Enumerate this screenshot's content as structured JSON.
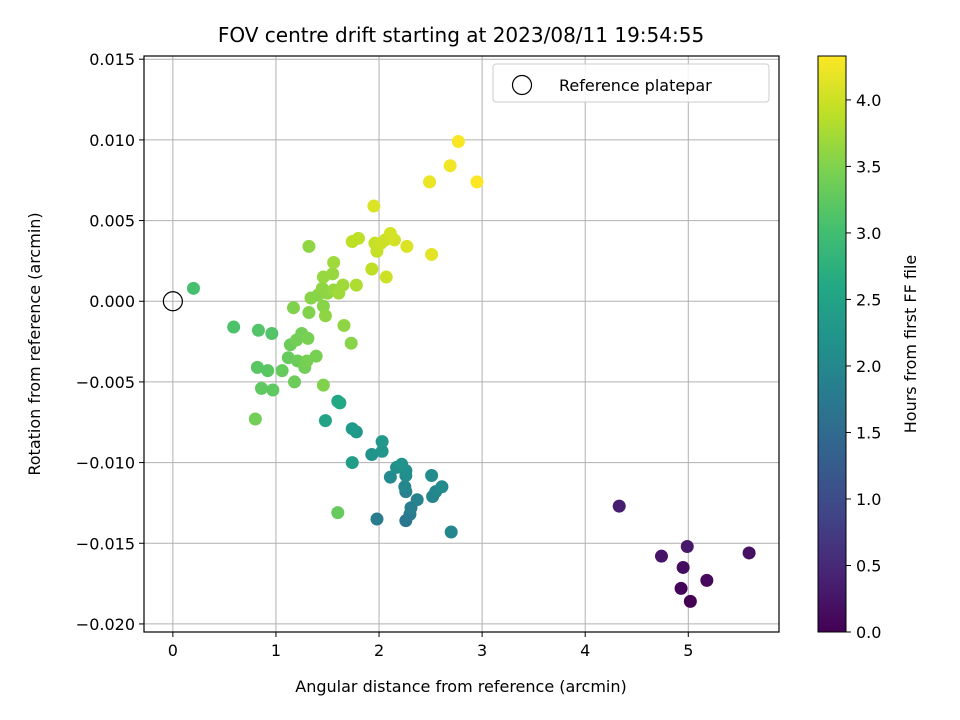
{
  "chart_data": {
    "type": "scatter",
    "title": "FOV centre drift starting at 2023/08/11 19:54:55",
    "xlabel": "Angular distance from reference (arcmin)",
    "ylabel": "Rotation from reference (arcmin)",
    "xlim": [
      -0.28,
      5.88
    ],
    "ylim": [
      -0.0205,
      0.0152
    ],
    "xticks": [
      0,
      1,
      2,
      3,
      4,
      5
    ],
    "xtick_labels": [
      "0",
      "1",
      "2",
      "3",
      "4",
      "5"
    ],
    "yticks": [
      -0.02,
      -0.015,
      -0.01,
      -0.005,
      0.0,
      0.005,
      0.01,
      0.015
    ],
    "ytick_labels": [
      "−0.020",
      "−0.015",
      "−0.010",
      "−0.005",
      "0.000",
      "0.005",
      "0.010",
      "0.015"
    ],
    "grid": true,
    "colormap": "viridis",
    "colorbar": {
      "label": "Hours from first FF file",
      "range": [
        0.0,
        4.33
      ],
      "ticks": [
        0.0,
        0.5,
        1.0,
        1.5,
        2.0,
        2.5,
        3.0,
        3.5,
        4.0
      ],
      "tick_labels": [
        "0.0",
        "0.5",
        "1.0",
        "1.5",
        "2.0",
        "2.5",
        "3.0",
        "3.5",
        "4.0"
      ]
    },
    "legend": {
      "label": "Reference platepar",
      "placement": "top-right"
    },
    "reference_point": {
      "x": 0.0,
      "y": 0.0
    },
    "points": [
      {
        "x": 5.02,
        "y": -0.0186,
        "h": 0.0
      },
      {
        "x": 4.93,
        "y": -0.0178,
        "h": 0.05
      },
      {
        "x": 5.18,
        "y": -0.0173,
        "h": 0.1
      },
      {
        "x": 4.95,
        "y": -0.0165,
        "h": 0.15
      },
      {
        "x": 5.59,
        "y": -0.0156,
        "h": 0.2
      },
      {
        "x": 4.74,
        "y": -0.0158,
        "h": 0.25
      },
      {
        "x": 4.99,
        "y": -0.0152,
        "h": 0.3
      },
      {
        "x": 4.33,
        "y": -0.0127,
        "h": 0.35
      },
      {
        "x": 2.26,
        "y": -0.0136,
        "h": 1.7
      },
      {
        "x": 2.3,
        "y": -0.0132,
        "h": 1.75
      },
      {
        "x": 1.98,
        "y": -0.0135,
        "h": 1.8
      },
      {
        "x": 2.31,
        "y": -0.0128,
        "h": 1.85
      },
      {
        "x": 2.37,
        "y": -0.0123,
        "h": 1.9
      },
      {
        "x": 2.26,
        "y": -0.0118,
        "h": 1.9
      },
      {
        "x": 2.52,
        "y": -0.0121,
        "h": 1.95
      },
      {
        "x": 2.25,
        "y": -0.0115,
        "h": 2.0
      },
      {
        "x": 2.55,
        "y": -0.0118,
        "h": 2.0
      },
      {
        "x": 2.61,
        "y": -0.0115,
        "h": 2.05
      },
      {
        "x": 2.11,
        "y": -0.0109,
        "h": 2.05
      },
      {
        "x": 2.51,
        "y": -0.0108,
        "h": 2.1
      },
      {
        "x": 2.26,
        "y": -0.0108,
        "h": 2.1
      },
      {
        "x": 2.26,
        "y": -0.0105,
        "h": 2.15
      },
      {
        "x": 2.17,
        "y": -0.0103,
        "h": 2.15
      },
      {
        "x": 2.22,
        "y": -0.0101,
        "h": 2.2
      },
      {
        "x": 1.93,
        "y": -0.0095,
        "h": 2.2
      },
      {
        "x": 2.03,
        "y": -0.0093,
        "h": 2.25
      },
      {
        "x": 2.03,
        "y": -0.0087,
        "h": 2.3
      },
      {
        "x": 1.78,
        "y": -0.0081,
        "h": 2.3
      },
      {
        "x": 1.74,
        "y": -0.0079,
        "h": 2.35
      },
      {
        "x": 1.74,
        "y": -0.01,
        "h": 2.4
      },
      {
        "x": 1.48,
        "y": -0.0074,
        "h": 2.5
      },
      {
        "x": 1.6,
        "y": -0.0062,
        "h": 2.55
      },
      {
        "x": 1.62,
        "y": -0.0063,
        "h": 2.6
      },
      {
        "x": 2.7,
        "y": -0.0143,
        "h": 2.0
      },
      {
        "x": 0.2,
        "y": 0.0008,
        "h": 3.05
      },
      {
        "x": 0.59,
        "y": -0.0016,
        "h": 3.1
      },
      {
        "x": 0.83,
        "y": -0.0018,
        "h": 3.15
      },
      {
        "x": 0.96,
        "y": -0.002,
        "h": 3.15
      },
      {
        "x": 0.82,
        "y": -0.0041,
        "h": 3.2
      },
      {
        "x": 0.92,
        "y": -0.0043,
        "h": 3.2
      },
      {
        "x": 0.86,
        "y": -0.0054,
        "h": 3.25
      },
      {
        "x": 0.97,
        "y": -0.0055,
        "h": 3.25
      },
      {
        "x": 1.06,
        "y": -0.0043,
        "h": 3.3
      },
      {
        "x": 1.12,
        "y": -0.0035,
        "h": 3.3
      },
      {
        "x": 1.18,
        "y": -0.005,
        "h": 3.35
      },
      {
        "x": 1.21,
        "y": -0.0037,
        "h": 3.35
      },
      {
        "x": 1.14,
        "y": -0.0027,
        "h": 3.35
      },
      {
        "x": 1.2,
        "y": -0.0024,
        "h": 3.4
      },
      {
        "x": 1.25,
        "y": -0.002,
        "h": 3.4
      },
      {
        "x": 1.28,
        "y": -0.0041,
        "h": 3.4
      },
      {
        "x": 1.3,
        "y": -0.0037,
        "h": 3.45
      },
      {
        "x": 1.31,
        "y": -0.0023,
        "h": 3.45
      },
      {
        "x": 1.39,
        "y": -0.0034,
        "h": 3.45
      },
      {
        "x": 1.46,
        "y": -0.0052,
        "h": 3.5
      },
      {
        "x": 1.17,
        "y": -0.0004,
        "h": 3.5
      },
      {
        "x": 1.32,
        "y": -0.0007,
        "h": 3.5
      },
      {
        "x": 1.34,
        "y": 0.0002,
        "h": 3.55
      },
      {
        "x": 1.41,
        "y": 0.0004,
        "h": 3.55
      },
      {
        "x": 1.46,
        "y": -0.0003,
        "h": 3.55
      },
      {
        "x": 1.48,
        "y": -0.0009,
        "h": 3.6
      },
      {
        "x": 1.45,
        "y": 0.0008,
        "h": 3.6
      },
      {
        "x": 1.5,
        "y": 0.0005,
        "h": 3.6
      },
      {
        "x": 1.56,
        "y": 0.0007,
        "h": 3.65
      },
      {
        "x": 1.46,
        "y": 0.0015,
        "h": 3.65
      },
      {
        "x": 1.55,
        "y": 0.0017,
        "h": 3.65
      },
      {
        "x": 1.56,
        "y": 0.0024,
        "h": 3.7
      },
      {
        "x": 1.61,
        "y": 0.0005,
        "h": 3.7
      },
      {
        "x": 1.65,
        "y": 0.001,
        "h": 3.7
      },
      {
        "x": 1.66,
        "y": -0.0015,
        "h": 3.6
      },
      {
        "x": 1.73,
        "y": -0.0026,
        "h": 3.55
      },
      {
        "x": 1.78,
        "y": 0.001,
        "h": 3.8
      },
      {
        "x": 1.32,
        "y": 0.0034,
        "h": 3.6
      },
      {
        "x": 1.6,
        "y": -0.0131,
        "h": 3.3
      },
      {
        "x": 0.8,
        "y": -0.0073,
        "h": 3.4
      },
      {
        "x": 1.74,
        "y": 0.0037,
        "h": 3.9
      },
      {
        "x": 1.8,
        "y": 0.0039,
        "h": 3.9
      },
      {
        "x": 1.93,
        "y": 0.002,
        "h": 3.9
      },
      {
        "x": 1.96,
        "y": 0.0036,
        "h": 3.95
      },
      {
        "x": 1.98,
        "y": 0.0031,
        "h": 3.95
      },
      {
        "x": 2.02,
        "y": 0.0036,
        "h": 4.0
      },
      {
        "x": 2.06,
        "y": 0.0038,
        "h": 4.0
      },
      {
        "x": 2.07,
        "y": 0.0015,
        "h": 4.0
      },
      {
        "x": 2.11,
        "y": 0.0042,
        "h": 4.05
      },
      {
        "x": 2.15,
        "y": 0.0038,
        "h": 4.05
      },
      {
        "x": 2.27,
        "y": 0.0034,
        "h": 4.1
      },
      {
        "x": 1.95,
        "y": 0.0059,
        "h": 4.1
      },
      {
        "x": 2.51,
        "y": 0.0029,
        "h": 4.15
      },
      {
        "x": 2.49,
        "y": 0.0074,
        "h": 4.2
      },
      {
        "x": 2.69,
        "y": 0.0084,
        "h": 4.25
      },
      {
        "x": 2.77,
        "y": 0.0099,
        "h": 4.3
      },
      {
        "x": 2.95,
        "y": 0.0074,
        "h": 4.33
      }
    ]
  }
}
